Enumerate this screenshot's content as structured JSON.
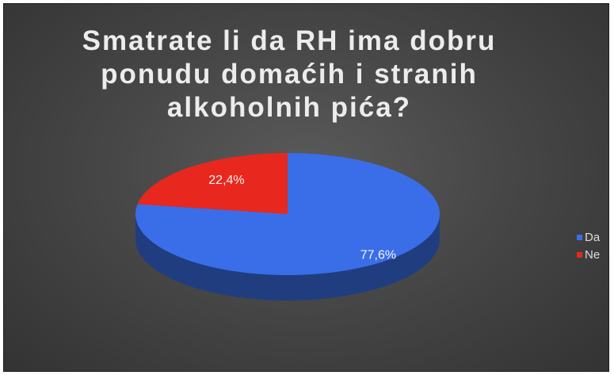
{
  "chart_data": {
    "type": "pie",
    "style": "3d",
    "title": "Smatrate li da RH ima dobru ponudu domaćih i stranih alkoholnih pića?",
    "categories": [
      "Da",
      "Ne"
    ],
    "values": [
      77.6,
      22.4
    ],
    "labels": [
      "77,6%",
      "22,4%"
    ],
    "colors": [
      "#3a6ee8",
      "#e8281e"
    ],
    "legend": "right"
  }
}
